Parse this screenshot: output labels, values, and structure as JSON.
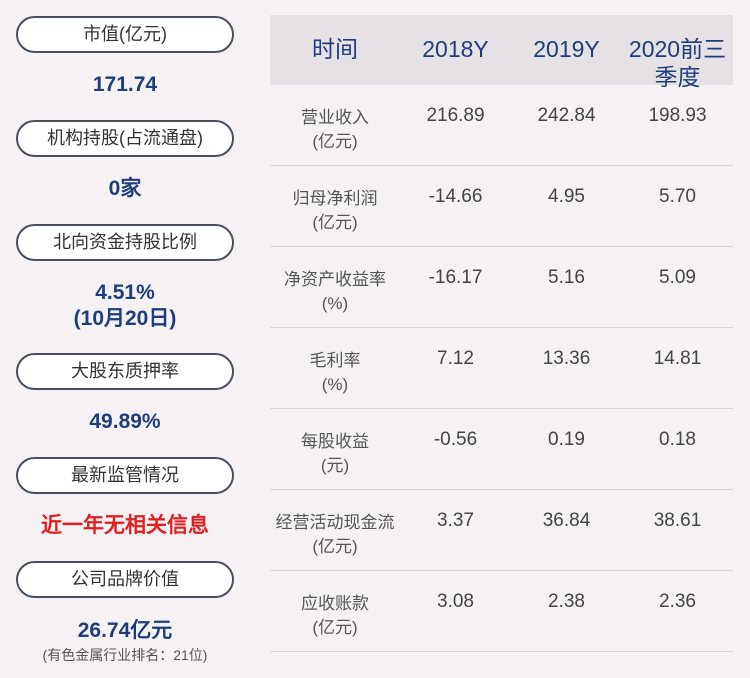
{
  "left_panel": {
    "items": [
      {
        "label": "市值(亿元)",
        "value": "171.74"
      },
      {
        "label": "机构持股(占流通盘)",
        "value": "0家"
      },
      {
        "label": "北向资金持股比例",
        "value": "4.51%",
        "value2": "(10月20日)"
      },
      {
        "label": "大股东质押率",
        "value": "49.89%"
      },
      {
        "label": "最新监管情况",
        "value": "近一年无相关信息"
      },
      {
        "label": "公司品牌价值",
        "value": "26.74亿元",
        "note": "(有色金属行业排名：21位)"
      }
    ]
  },
  "table": {
    "headers": [
      "时间",
      "2018Y",
      "2019Y",
      "2020前三",
      "季度"
    ],
    "rows": [
      {
        "label1": "营业收入",
        "label2": "(亿元)",
        "values": [
          "216.89",
          "242.84",
          "198.93"
        ]
      },
      {
        "label1": "归母净利润",
        "label2": "(亿元)",
        "values": [
          "-14.66",
          "4.95",
          "5.70"
        ]
      },
      {
        "label1": "净资产收益率",
        "label2": "(%)",
        "values": [
          "-16.17",
          "5.16",
          "5.09"
        ]
      },
      {
        "label1": "毛利率",
        "label2": "(%)",
        "values": [
          "7.12",
          "13.36",
          "14.81"
        ]
      },
      {
        "label1": "每股收益",
        "label2": "(元)",
        "values": [
          "-0.56",
          "0.19",
          "0.18"
        ]
      },
      {
        "label1": "经营活动现金流",
        "label2": "(亿元)",
        "values": [
          "3.37",
          "36.84",
          "38.61"
        ]
      },
      {
        "label1": "应收账款",
        "label2": "(亿元)",
        "values": [
          "3.08",
          "2.38",
          "2.36"
        ]
      }
    ]
  },
  "colors": {
    "value_blue": "#1f3d7c",
    "alert_red": "#e02020",
    "header_bg": "#e6e1e5"
  }
}
